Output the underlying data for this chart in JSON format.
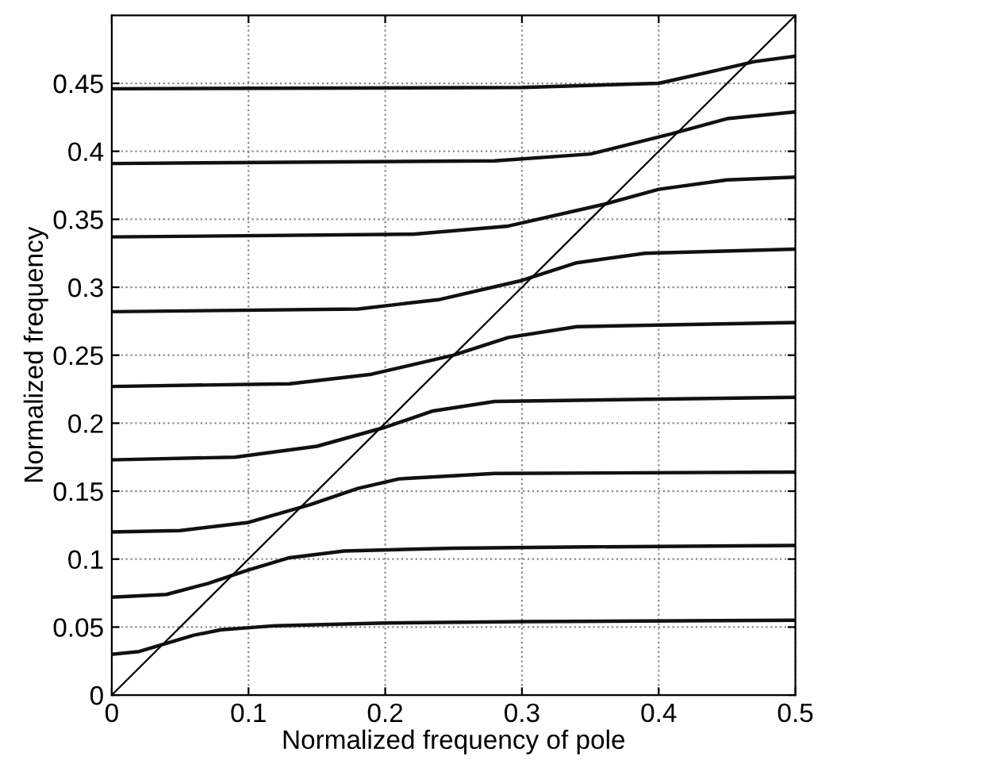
{
  "chart_data": {
    "type": "line",
    "xlabel": "Normalized frequency of pole",
    "ylabel": "Normalized frequency",
    "xlim": [
      0,
      0.5
    ],
    "ylim": [
      0,
      0.5
    ],
    "xticks": [
      0,
      0.1,
      0.2,
      0.3,
      0.4,
      0.5
    ],
    "yticks": [
      0,
      0.05,
      0.1,
      0.15,
      0.2,
      0.25,
      0.3,
      0.35,
      0.4,
      0.45
    ],
    "grid": true,
    "marker": "none",
    "line_style": "solid",
    "series": [
      {
        "color": "#111111",
        "x": [
          0,
          0.02,
          0.04,
          0.06,
          0.08,
          0.12,
          0.2,
          0.3,
          0.5
        ],
        "values": [
          0.03,
          0.032,
          0.038,
          0.044,
          0.048,
          0.051,
          0.053,
          0.054,
          0.055
        ]
      },
      {
        "color": "#111111",
        "x": [
          0,
          0.04,
          0.07,
          0.1,
          0.13,
          0.17,
          0.25,
          0.35,
          0.5
        ],
        "values": [
          0.072,
          0.074,
          0.082,
          0.092,
          0.101,
          0.106,
          0.108,
          0.109,
          0.11
        ]
      },
      {
        "color": "#111111",
        "x": [
          0,
          0.05,
          0.1,
          0.145,
          0.18,
          0.21,
          0.28,
          0.5
        ],
        "values": [
          0.12,
          0.121,
          0.127,
          0.14,
          0.152,
          0.159,
          0.163,
          0.164
        ]
      },
      {
        "color": "#111111",
        "x": [
          0,
          0.09,
          0.15,
          0.2,
          0.235,
          0.28,
          0.5
        ],
        "values": [
          0.173,
          0.175,
          0.183,
          0.197,
          0.209,
          0.216,
          0.219
        ]
      },
      {
        "color": "#111111",
        "x": [
          0,
          0.13,
          0.19,
          0.25,
          0.29,
          0.34,
          0.5
        ],
        "values": [
          0.227,
          0.229,
          0.236,
          0.25,
          0.263,
          0.271,
          0.274
        ]
      },
      {
        "color": "#111111",
        "x": [
          0,
          0.18,
          0.24,
          0.3,
          0.34,
          0.39,
          0.5
        ],
        "values": [
          0.282,
          0.284,
          0.291,
          0.305,
          0.318,
          0.325,
          0.328
        ]
      },
      {
        "color": "#111111",
        "x": [
          0,
          0.22,
          0.29,
          0.36,
          0.4,
          0.45,
          0.5
        ],
        "values": [
          0.337,
          0.339,
          0.345,
          0.361,
          0.372,
          0.379,
          0.381
        ]
      },
      {
        "color": "#111111",
        "x": [
          0,
          0.28,
          0.35,
          0.41,
          0.45,
          0.5
        ],
        "values": [
          0.391,
          0.393,
          0.398,
          0.413,
          0.424,
          0.429
        ]
      },
      {
        "color": "#111111",
        "x": [
          0,
          0.3,
          0.4,
          0.44,
          0.47,
          0.5
        ],
        "values": [
          0.446,
          0.447,
          0.45,
          0.459,
          0.466,
          0.47
        ]
      },
      {
        "color": "#000000",
        "x": [
          0,
          0.5
        ],
        "values": [
          0,
          0.5
        ]
      }
    ]
  }
}
